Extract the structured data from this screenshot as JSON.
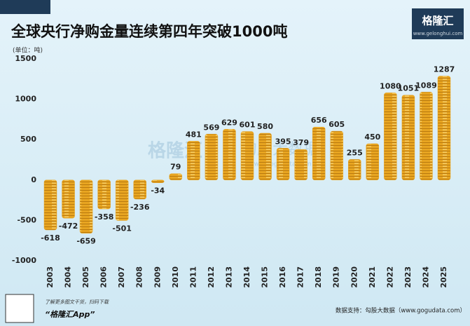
{
  "chart_data": {
    "type": "bar",
    "title": "全球央行净购金量连续第四年突破1000吨",
    "unit": "(单位：吨)",
    "brand": "格隆汇",
    "brand_url": "www.gelonghui.com",
    "watermark": [
      "格隆汇",
      "勾股大数据",
      "www.gogudata.com"
    ],
    "footer_left": [
      "了解更多图文干货，扫码下载",
      "“格隆汇App”"
    ],
    "source": "数据支持：勾股大数据（www.gogudata.com）",
    "categories": [
      "2003",
      "2004",
      "2005",
      "2006",
      "2007",
      "2008",
      "2009",
      "2010",
      "2011",
      "2012",
      "2013",
      "2014",
      "2015",
      "2016",
      "2017",
      "2018",
      "2019",
      "2020",
      "2021",
      "2022",
      "2023",
      "2024",
      "2025"
    ],
    "values": [
      -618,
      -472,
      -659,
      -358,
      -501,
      -236,
      -34,
      79,
      481,
      569,
      629,
      601,
      580,
      395,
      379,
      656,
      605,
      255,
      450,
      1080,
      1051,
      1089,
      1287
    ],
    "color": "#e8a521",
    "ylim": [
      -1000,
      1500
    ],
    "yticks": [
      -1000,
      -500,
      0,
      500,
      1000,
      1500
    ],
    "grid": false
  }
}
